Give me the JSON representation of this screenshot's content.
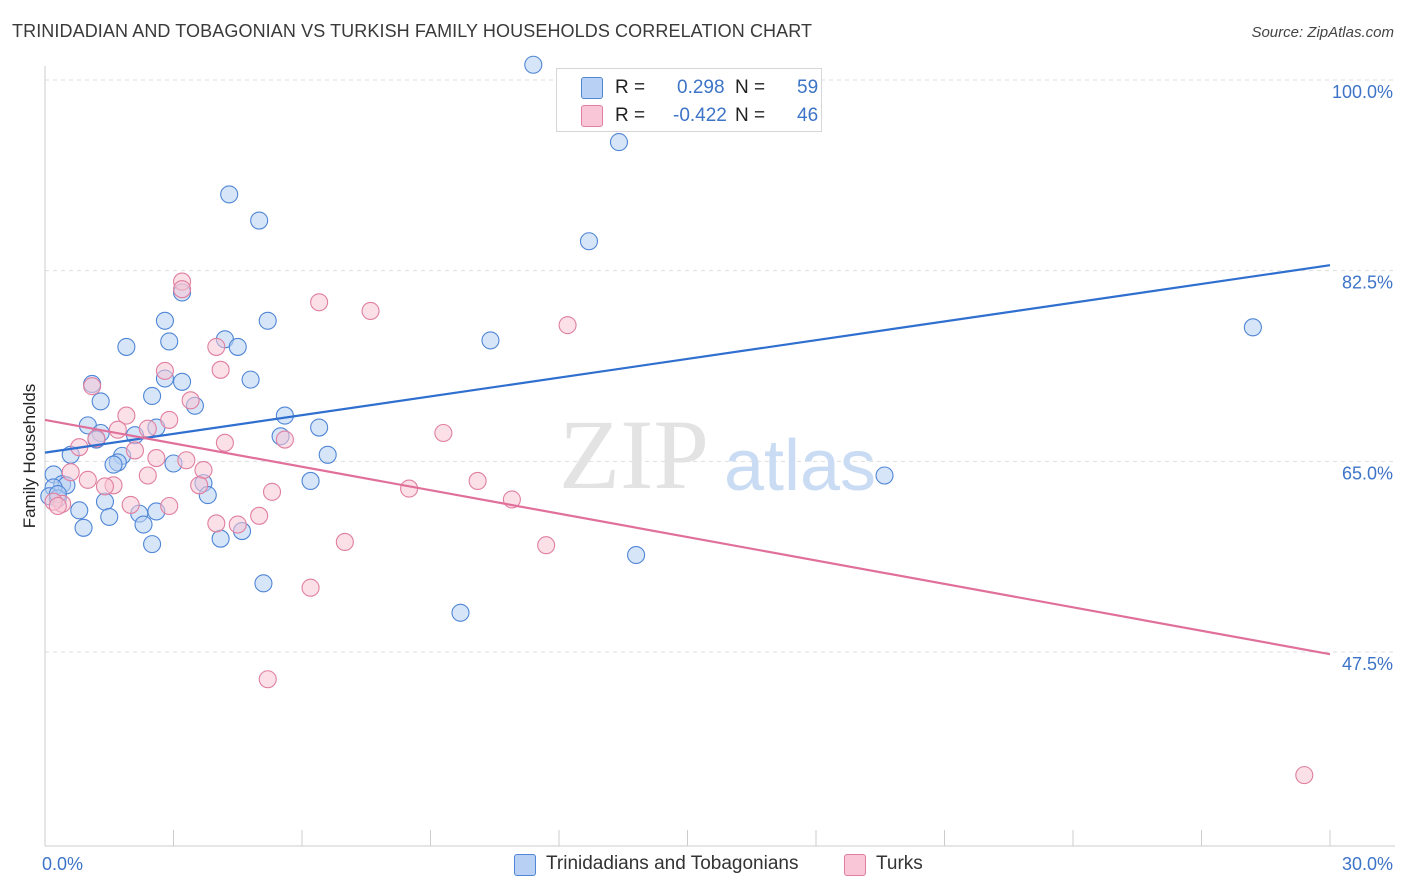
{
  "title": "TRINIDADIAN AND TOBAGONIAN VS TURKISH FAMILY HOUSEHOLDS CORRELATION CHART",
  "source": "Source: ZipAtlas.com",
  "watermark": {
    "zip": "ZIP",
    "atlas": "atlas"
  },
  "colors": {
    "blue_fill": "#b7d0f3",
    "blue_stroke": "#4f86d6",
    "blue_line": "#2f6fcf",
    "pink_fill": "#f8c6d6",
    "pink_stroke": "#e07fa0",
    "pink_line": "#e0709a",
    "tick_text": "#3d74c8",
    "grid": "#dddddd"
  },
  "legend": {
    "rows": [
      {
        "r_label": "R =",
        "r_value": "0.298",
        "n_label": "N =",
        "n_value": "59"
      },
      {
        "r_label": "R =",
        "r_value": "-0.422",
        "n_label": "N =",
        "n_value": "46"
      }
    ]
  },
  "bottom_legend": [
    "Trinidadians and Tobagonians",
    "Turks"
  ],
  "chart_data": {
    "type": "scatter",
    "title": "TRINIDADIAN AND TOBAGONIAN VS TURKISH FAMILY HOUSEHOLDS CORRELATION CHART",
    "xlabel": "",
    "ylabel": "Family Households",
    "xlim": [
      0,
      30
    ],
    "ylim": [
      30,
      101.5
    ],
    "x_tick_labels": [
      {
        "value": 0,
        "label": "0.0%"
      },
      {
        "value": 30,
        "label": "30.0%"
      }
    ],
    "y_tick_labels": [
      {
        "value": 100,
        "label": "100.0%"
      },
      {
        "value": 82.5,
        "label": "82.5%"
      },
      {
        "value": 65,
        "label": "65.0%"
      },
      {
        "value": 47.5,
        "label": "47.5%"
      }
    ],
    "grid": true,
    "series": [
      {
        "name": "Trinidadians and Tobagonians",
        "color": "blue",
        "points": [
          [
            11.4,
            101.4
          ],
          [
            13.4,
            94.3
          ],
          [
            4.3,
            89.5
          ],
          [
            5.0,
            87.1
          ],
          [
            12.7,
            85.2
          ],
          [
            3.2,
            80.5
          ],
          [
            5.2,
            77.9
          ],
          [
            2.8,
            77.9
          ],
          [
            28.2,
            77.3
          ],
          [
            2.9,
            76.0
          ],
          [
            4.2,
            76.2
          ],
          [
            10.4,
            76.1
          ],
          [
            4.5,
            75.5
          ],
          [
            1.9,
            75.5
          ],
          [
            2.8,
            72.6
          ],
          [
            4.8,
            72.5
          ],
          [
            3.2,
            72.3
          ],
          [
            1.1,
            72.1
          ],
          [
            2.5,
            71.0
          ],
          [
            1.3,
            70.5
          ],
          [
            5.6,
            69.2
          ],
          [
            6.4,
            68.1
          ],
          [
            1.0,
            68.3
          ],
          [
            2.6,
            68.1
          ],
          [
            1.3,
            67.6
          ],
          [
            2.1,
            67.4
          ],
          [
            5.5,
            67.3
          ],
          [
            1.2,
            67.0
          ],
          [
            0.6,
            65.6
          ],
          [
            6.6,
            65.6
          ],
          [
            1.8,
            65.5
          ],
          [
            1.7,
            64.9
          ],
          [
            3.0,
            64.8
          ],
          [
            19.6,
            63.7
          ],
          [
            6.2,
            63.2
          ],
          [
            0.2,
            63.8
          ],
          [
            0.4,
            62.9
          ],
          [
            0.5,
            62.8
          ],
          [
            0.2,
            62.6
          ],
          [
            3.7,
            63.0
          ],
          [
            3.8,
            61.9
          ],
          [
            0.1,
            61.8
          ],
          [
            0.3,
            61.6
          ],
          [
            1.4,
            61.3
          ],
          [
            0.8,
            60.5
          ],
          [
            1.5,
            59.9
          ],
          [
            2.2,
            60.2
          ],
          [
            2.6,
            60.4
          ],
          [
            0.9,
            58.9
          ],
          [
            2.3,
            59.2
          ],
          [
            4.6,
            58.6
          ],
          [
            4.1,
            57.9
          ],
          [
            2.5,
            57.4
          ],
          [
            13.8,
            56.4
          ],
          [
            5.1,
            53.8
          ],
          [
            9.7,
            51.1
          ],
          [
            0.3,
            62.0
          ],
          [
            1.6,
            64.7
          ],
          [
            3.5,
            70.1
          ]
        ]
      },
      {
        "name": "Turks",
        "color": "pink",
        "points": [
          [
            3.2,
            81.5
          ],
          [
            3.2,
            80.8
          ],
          [
            6.4,
            79.6
          ],
          [
            7.6,
            78.8
          ],
          [
            12.2,
            77.5
          ],
          [
            4.0,
            75.5
          ],
          [
            2.8,
            73.3
          ],
          [
            4.1,
            73.4
          ],
          [
            1.1,
            71.9
          ],
          [
            3.4,
            70.6
          ],
          [
            1.9,
            69.2
          ],
          [
            2.9,
            68.8
          ],
          [
            1.7,
            67.9
          ],
          [
            2.4,
            68.0
          ],
          [
            9.3,
            67.6
          ],
          [
            1.2,
            67.1
          ],
          [
            5.6,
            67.0
          ],
          [
            4.2,
            66.7
          ],
          [
            0.8,
            66.3
          ],
          [
            2.1,
            66.0
          ],
          [
            2.6,
            65.3
          ],
          [
            3.7,
            64.2
          ],
          [
            0.6,
            64.0
          ],
          [
            2.4,
            63.7
          ],
          [
            1.0,
            63.3
          ],
          [
            10.1,
            63.2
          ],
          [
            1.6,
            62.8
          ],
          [
            3.6,
            62.8
          ],
          [
            8.5,
            62.5
          ],
          [
            5.3,
            62.2
          ],
          [
            10.9,
            61.5
          ],
          [
            0.4,
            61.1
          ],
          [
            0.2,
            61.3
          ],
          [
            2.0,
            61.0
          ],
          [
            2.9,
            60.9
          ],
          [
            5.0,
            60.0
          ],
          [
            4.5,
            59.2
          ],
          [
            4.0,
            59.3
          ],
          [
            7.0,
            57.6
          ],
          [
            11.7,
            57.3
          ],
          [
            6.2,
            53.4
          ],
          [
            5.2,
            45.0
          ],
          [
            29.4,
            36.2
          ],
          [
            0.3,
            60.9
          ],
          [
            1.4,
            62.7
          ],
          [
            3.3,
            65.1
          ]
        ]
      }
    ],
    "trendlines": [
      {
        "series": "Trinidadians and Tobagonians",
        "x": [
          0,
          30
        ],
        "y": [
          65.8,
          83.0
        ]
      },
      {
        "series": "Turks",
        "x": [
          0,
          30
        ],
        "y": [
          68.8,
          47.3
        ]
      }
    ]
  }
}
